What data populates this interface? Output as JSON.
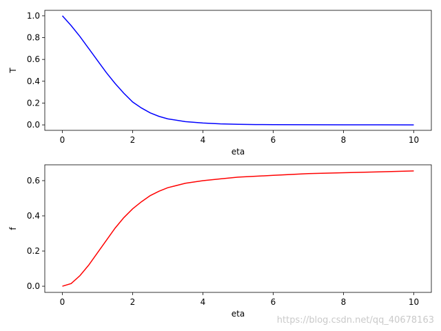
{
  "chart_data": [
    {
      "type": "line",
      "xlabel": "eta",
      "ylabel": "T",
      "xlim": [
        -0.5,
        10.5
      ],
      "ylim": [
        -0.05,
        1.05
      ],
      "xticks": [
        "0",
        "2",
        "4",
        "6",
        "8",
        "10"
      ],
      "yticks": [
        "0.0",
        "0.2",
        "0.4",
        "0.6",
        "0.8",
        "1.0"
      ],
      "grid": false,
      "legend": "none",
      "series": [
        {
          "color": "#0000ff",
          "x": [
            0,
            0.25,
            0.5,
            0.75,
            1.0,
            1.25,
            1.5,
            1.75,
            2.0,
            2.25,
            2.5,
            2.75,
            3.0,
            3.5,
            4.0,
            4.5,
            5.0,
            5.5,
            6.0,
            7.0,
            8.0,
            9.0,
            10.0
          ],
          "values": [
            1.0,
            0.91,
            0.81,
            0.7,
            0.59,
            0.48,
            0.38,
            0.29,
            0.21,
            0.155,
            0.11,
            0.078,
            0.055,
            0.03,
            0.017,
            0.009,
            0.005,
            0.003,
            0.002,
            0.001,
            0.0005,
            0.0002,
            0.0001
          ]
        }
      ]
    },
    {
      "type": "line",
      "xlabel": "eta",
      "ylabel": "f",
      "xlim": [
        -0.5,
        10.5
      ],
      "ylim": [
        -0.035,
        0.69
      ],
      "xticks": [
        "0",
        "2",
        "4",
        "6",
        "8",
        "10"
      ],
      "yticks": [
        "0.0",
        "0.2",
        "0.4",
        "0.6"
      ],
      "grid": false,
      "legend": "none",
      "series": [
        {
          "color": "#ff0000",
          "x": [
            0,
            0.25,
            0.5,
            0.75,
            1.0,
            1.25,
            1.5,
            1.75,
            2.0,
            2.25,
            2.5,
            2.75,
            3.0,
            3.5,
            4.0,
            4.5,
            5.0,
            6.0,
            7.0,
            8.0,
            9.0,
            10.0
          ],
          "values": [
            0.0,
            0.015,
            0.06,
            0.12,
            0.19,
            0.26,
            0.33,
            0.39,
            0.44,
            0.48,
            0.515,
            0.54,
            0.56,
            0.585,
            0.6,
            0.61,
            0.62,
            0.63,
            0.64,
            0.645,
            0.65,
            0.655
          ]
        }
      ]
    }
  ],
  "watermark": "https://blog.csdn.net/qq_40678163"
}
